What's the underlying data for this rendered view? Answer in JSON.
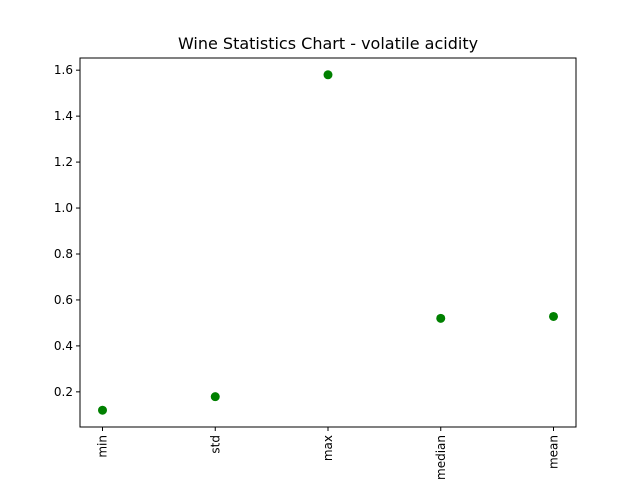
{
  "chart_data": {
    "type": "scatter",
    "title": "Wine Statistics Chart - volatile acidity",
    "xlabel": "",
    "ylabel": "",
    "categories": [
      "min",
      "std",
      "max",
      "median",
      "mean"
    ],
    "values": [
      0.12,
      0.179,
      1.58,
      0.52,
      0.528
    ],
    "ylim": [
      0.047,
      1.653
    ],
    "yticks": [
      0.2,
      0.4,
      0.6,
      0.8,
      1.0,
      1.2,
      1.4,
      1.6
    ],
    "ytick_labels": [
      "0.2",
      "0.4",
      "0.6",
      "0.8",
      "1.0",
      "1.2",
      "1.4",
      "1.6"
    ],
    "marker_color": "#008000",
    "grid": false,
    "legend": "none"
  }
}
